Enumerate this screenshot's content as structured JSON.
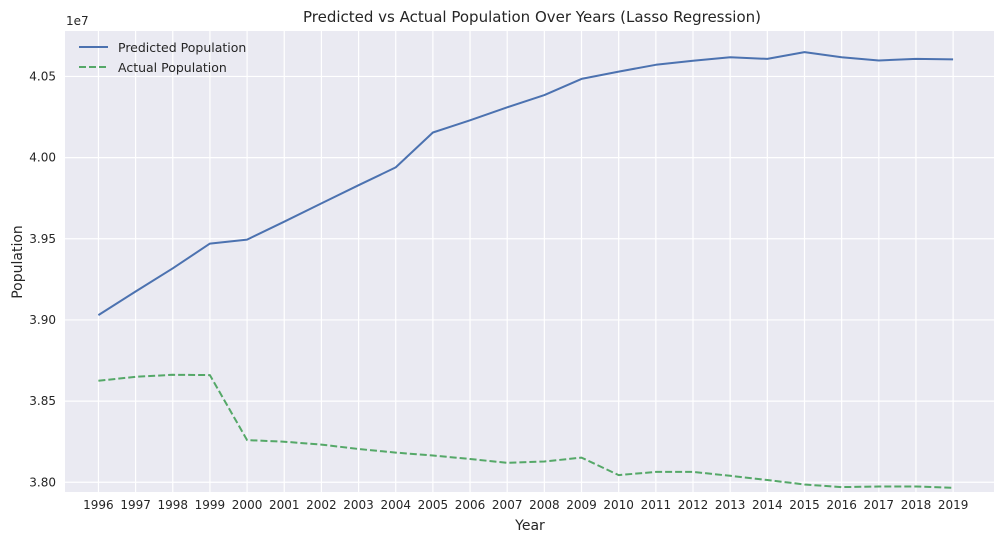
{
  "chart_data": {
    "type": "line",
    "title": "Predicted vs Actual Population Over Years (Lasso Regression)",
    "xlabel": "Year",
    "ylabel": "Population",
    "y_offset_label": "1e7",
    "x": [
      1996,
      1997,
      1998,
      1999,
      2000,
      2001,
      2002,
      2003,
      2004,
      2005,
      2006,
      2007,
      2008,
      2009,
      2010,
      2011,
      2012,
      2013,
      2014,
      2015,
      2016,
      2017,
      2018,
      2019
    ],
    "x_tick_labels": [
      "1996",
      "1997",
      "1998",
      "1999",
      "2000",
      "2001",
      "2002",
      "2003",
      "2004",
      "2005",
      "2006",
      "2007",
      "2008",
      "2009",
      "2010",
      "2011",
      "2012",
      "2013",
      "2014",
      "2015",
      "2016",
      "2017",
      "2018",
      "2019"
    ],
    "y_ticks": [
      38000000,
      38500000,
      39000000,
      39500000,
      40000000,
      40500000
    ],
    "y_tick_labels": [
      "3.80",
      "3.85",
      "3.90",
      "3.95",
      "4.00",
      "4.05"
    ],
    "xlim": [
      1995.1,
      2020.1
    ],
    "ylim": [
      37940000,
      40780000
    ],
    "grid": true,
    "legend_position": "top-left",
    "series": [
      {
        "name": "Predicted Population",
        "color": "#4c72b0",
        "line_style": "solid",
        "values": [
          39030000,
          39175000,
          39318000,
          39470000,
          39495000,
          39605000,
          39718000,
          39830000,
          39940000,
          40155000,
          40230000,
          40310000,
          40385000,
          40485000,
          40530000,
          40572000,
          40597000,
          40618000,
          40608000,
          40650000,
          40618000,
          40598000,
          40608000,
          40605000
        ]
      },
      {
        "name": "Actual Population",
        "color": "#55a868",
        "line_style": "dashed",
        "values": [
          38625000,
          38650000,
          38662000,
          38660000,
          38260000,
          38250000,
          38232000,
          38205000,
          38183000,
          38165000,
          38143000,
          38120000,
          38128000,
          38152000,
          38044000,
          38064000,
          38064000,
          38040000,
          38014000,
          37986000,
          37970000,
          37974000,
          37974000,
          37966000
        ]
      }
    ]
  }
}
